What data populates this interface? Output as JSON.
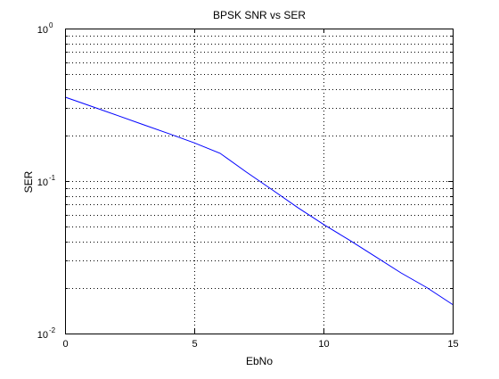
{
  "chart_data": {
    "type": "line",
    "title": "BPSK SNR vs SER",
    "xlabel": "EbNo",
    "ylabel": "SER",
    "xlim": [
      0,
      15
    ],
    "ylim": [
      0.01,
      1
    ],
    "yscale": "log",
    "grid": true,
    "x_ticks": [
      0,
      5,
      10,
      15
    ],
    "x_tick_labels": [
      "0",
      "5",
      "10",
      "15"
    ],
    "y_ticks": [
      0.01,
      0.1,
      1
    ],
    "y_tick_labels": [
      {
        "base": "10",
        "exp": "-2"
      },
      {
        "base": "10",
        "exp": "-1"
      },
      {
        "base": "10",
        "exp": "0"
      }
    ],
    "series": [
      {
        "color": "#0000ff",
        "x": [
          0,
          1,
          2,
          3,
          4,
          5,
          6,
          7,
          8,
          9,
          10,
          11,
          12,
          13,
          14,
          15
        ],
        "y": [
          0.355,
          0.31,
          0.27,
          0.235,
          0.205,
          0.178,
          0.152,
          0.115,
          0.088,
          0.067,
          0.052,
          0.041,
          0.032,
          0.025,
          0.02,
          0.0155
        ]
      }
    ]
  }
}
